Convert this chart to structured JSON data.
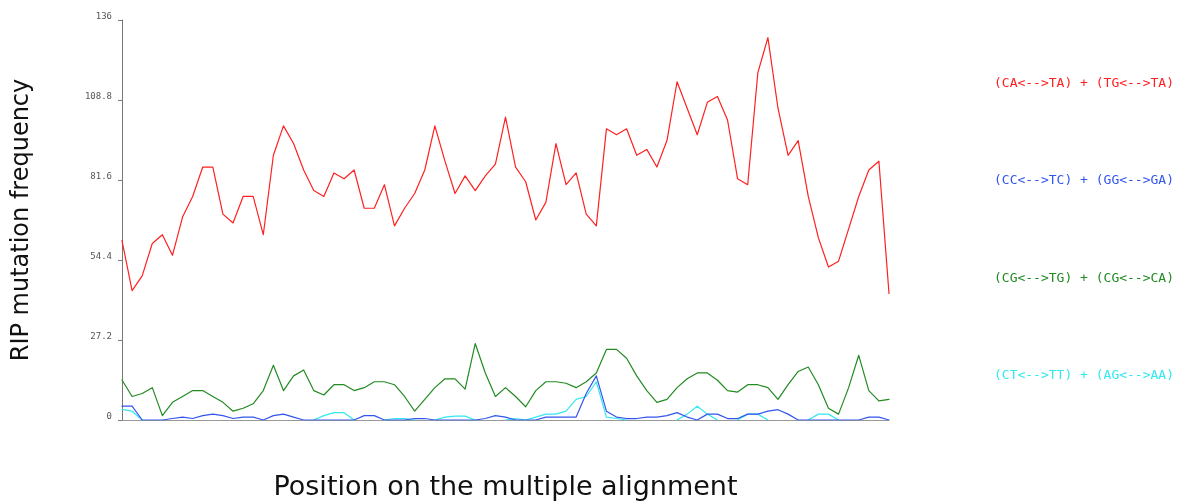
{
  "chart_data": {
    "type": "line",
    "xlabel": "Position on the multiple alignment",
    "ylabel": "RIP mutation frequency",
    "categories": [
      null,
      null,
      null,
      null,
      null,
      null,
      null,
      null,
      null,
      null,
      null,
      null,
      null,
      null,
      null,
      null,
      null,
      null,
      null,
      null,
      null,
      null,
      null,
      null,
      null,
      null,
      null,
      null,
      null,
      null,
      null,
      null,
      null,
      null,
      null,
      null,
      null,
      null,
      null,
      null,
      null,
      null,
      null,
      null,
      null,
      null,
      null,
      null,
      null,
      null,
      null,
      null,
      null,
      null,
      null,
      null,
      null,
      null,
      null,
      null,
      null,
      null,
      null,
      null,
      null,
      null,
      null,
      null,
      null,
      null,
      null,
      null,
      null,
      null,
      null,
      null,
      null
    ],
    "ylim": [
      0,
      136
    ],
    "yticks": [
      0,
      27.2,
      54.4,
      81.6,
      108.8,
      136
    ],
    "tick_labels": "y",
    "grid": false,
    "legend": "right",
    "marker": "none",
    "line_style": "solid",
    "series": [
      {
        "name": "(CA<-->TA) + (TG<-->TA)",
        "color": "#ff2020",
        "values": [
          61,
          44,
          49,
          60,
          63,
          56,
          69,
          76,
          86,
          86,
          70,
          67,
          76,
          76,
          63,
          90,
          100,
          94,
          85,
          78,
          76,
          84,
          82,
          85,
          72,
          72,
          80,
          66,
          72,
          77,
          85,
          100,
          88,
          77,
          83,
          78,
          83,
          87,
          103,
          86,
          81,
          68,
          74,
          94,
          80,
          84,
          70,
          66,
          99,
          97,
          99,
          90,
          92,
          86,
          95,
          115,
          106,
          97,
          108,
          110,
          102,
          82,
          80,
          118,
          130,
          106,
          90,
          95,
          76,
          62,
          52,
          54,
          65,
          76,
          85,
          88,
          43
        ]
      },
      {
        "name": "(CC<-->TC) + (GG<-->GA)",
        "color": "#3355ee",
        "values": [
          4.7,
          4.7,
          0,
          0,
          0,
          0.5,
          1,
          0.5,
          1.5,
          2,
          1.5,
          0.5,
          1,
          1,
          0,
          1.5,
          2,
          1,
          0,
          0,
          0,
          0,
          0,
          0,
          1.5,
          1.5,
          0,
          0,
          0,
          0.5,
          0.5,
          0,
          0,
          0,
          0,
          0,
          0.5,
          1.5,
          1,
          0,
          0,
          0,
          1,
          1,
          1,
          1,
          9,
          15,
          3,
          1,
          0.5,
          0.5,
          1,
          1,
          1.5,
          2.5,
          1,
          0,
          2,
          2,
          0.5,
          0.5,
          2,
          2,
          3,
          3.5,
          2,
          0,
          0,
          0,
          0,
          0,
          0,
          0,
          1,
          1,
          0
        ]
      },
      {
        "name": "(CG<-->TG) + (CG<-->CA)",
        "color": "#228b22",
        "values": [
          13.6,
          8,
          9,
          11,
          1.5,
          6,
          8,
          10,
          10,
          8,
          6,
          3,
          4,
          5.5,
          10,
          18.6,
          10,
          15,
          17,
          10,
          8.5,
          12,
          12,
          10,
          11,
          13,
          13,
          12,
          8,
          3,
          7,
          11,
          14,
          14,
          10.5,
          26,
          16,
          8,
          11,
          8,
          4.5,
          10,
          13,
          13,
          12.5,
          11,
          13,
          16,
          24,
          24,
          21,
          15,
          10,
          6,
          7,
          11,
          14,
          16,
          16,
          13.5,
          10,
          9.5,
          12,
          12,
          11,
          7,
          12,
          16.5,
          18,
          12,
          4,
          2,
          11,
          22,
          10,
          6.5,
          7
        ]
      },
      {
        "name": "(CT<-->TT) + (AG<-->AA)",
        "color": "#33e8f0",
        "values": [
          3.6,
          3,
          0,
          null,
          null,
          null,
          null,
          null,
          null,
          null,
          null,
          null,
          null,
          null,
          null,
          null,
          null,
          null,
          null,
          0,
          1.5,
          2.5,
          2.5,
          0,
          null,
          null,
          0,
          0.5,
          0.5,
          0,
          null,
          0,
          1,
          1.3,
          1.3,
          0,
          null,
          null,
          0,
          0.5,
          0,
          1,
          2,
          2,
          3,
          7,
          8,
          13,
          1,
          0.5,
          0,
          null,
          null,
          null,
          null,
          0,
          2,
          4.7,
          2,
          0,
          null,
          0,
          2,
          2,
          0,
          null,
          null,
          null,
          0,
          2,
          2,
          0,
          null,
          null,
          null,
          null,
          null
        ]
      }
    ]
  }
}
